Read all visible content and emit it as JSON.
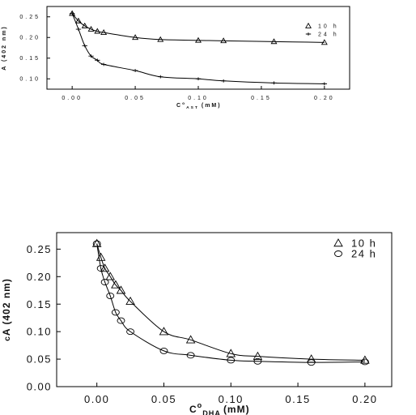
{
  "chart_data": [
    {
      "type": "scatter",
      "title": "",
      "xlabel_main": "C",
      "xlabel_sup": "o",
      "xlabel_sub": "AST",
      "xlabel_unit": "(mM)",
      "ylabel": "A (402 nm)",
      "xlim": [
        -0.02,
        0.22
      ],
      "ylim": [
        0.075,
        0.275
      ],
      "xticks": [
        "0.00",
        "0.05",
        "0.10",
        "0.15",
        "0.20"
      ],
      "xtick_values": [
        0.0,
        0.05,
        0.1,
        0.15,
        0.2
      ],
      "yticks": [
        "0.10",
        "0.15",
        "0.20",
        "0.25"
      ],
      "ytick_values": [
        0.1,
        0.15,
        0.2,
        0.25
      ],
      "grid": false,
      "legend_position": "top-right",
      "series": [
        {
          "name": "10 h",
          "marker": "triangle",
          "x": [
            0.0,
            0.005,
            0.01,
            0.015,
            0.02,
            0.025,
            0.05,
            0.07,
            0.1,
            0.12,
            0.16,
            0.2
          ],
          "y": [
            0.258,
            0.24,
            0.228,
            0.22,
            0.215,
            0.212,
            0.2,
            0.195,
            0.193,
            0.192,
            0.19,
            0.188
          ]
        },
        {
          "name": "24 h",
          "marker": "cross",
          "x": [
            0.0,
            0.005,
            0.01,
            0.015,
            0.02,
            0.025,
            0.05,
            0.07,
            0.1,
            0.12,
            0.16,
            0.2
          ],
          "y": [
            0.258,
            0.22,
            0.18,
            0.155,
            0.145,
            0.135,
            0.12,
            0.105,
            0.1,
            0.095,
            0.09,
            0.088
          ]
        }
      ]
    },
    {
      "type": "scatter",
      "title": "",
      "xlabel_main": "C",
      "xlabel_sup": "o",
      "xlabel_sub": "DHA",
      "xlabel_unit": "(mM)",
      "ylabel": "A (402 nm)",
      "ylabel_prefix": "c",
      "xlim": [
        -0.03,
        0.22
      ],
      "ylim": [
        0.0,
        0.28
      ],
      "xticks": [
        "0.00",
        "0.05",
        "0.10",
        "0.15",
        "0.20"
      ],
      "xtick_values": [
        0.0,
        0.05,
        0.1,
        0.15,
        0.2
      ],
      "yticks": [
        "0.00",
        "0.05",
        "0.10",
        "0.15",
        "0.20",
        "0.25"
      ],
      "ytick_values": [
        0.0,
        0.05,
        0.1,
        0.15,
        0.2,
        0.25
      ],
      "grid": false,
      "legend_position": "top-right",
      "series": [
        {
          "name": "10 h",
          "marker": "triangle",
          "x": [
            0.0,
            0.003,
            0.006,
            0.01,
            0.014,
            0.018,
            0.025,
            0.05,
            0.07,
            0.1,
            0.12,
            0.16,
            0.2
          ],
          "y": [
            0.26,
            0.235,
            0.215,
            0.2,
            0.185,
            0.175,
            0.155,
            0.1,
            0.085,
            0.06,
            0.055,
            0.05,
            0.048
          ]
        },
        {
          "name": "24 h",
          "marker": "circle",
          "x": [
            0.0,
            0.003,
            0.006,
            0.01,
            0.014,
            0.018,
            0.025,
            0.05,
            0.07,
            0.1,
            0.12,
            0.16,
            0.2
          ],
          "y": [
            0.26,
            0.215,
            0.19,
            0.165,
            0.135,
            0.12,
            0.1,
            0.065,
            0.057,
            0.048,
            0.046,
            0.044,
            0.045
          ]
        }
      ]
    }
  ]
}
